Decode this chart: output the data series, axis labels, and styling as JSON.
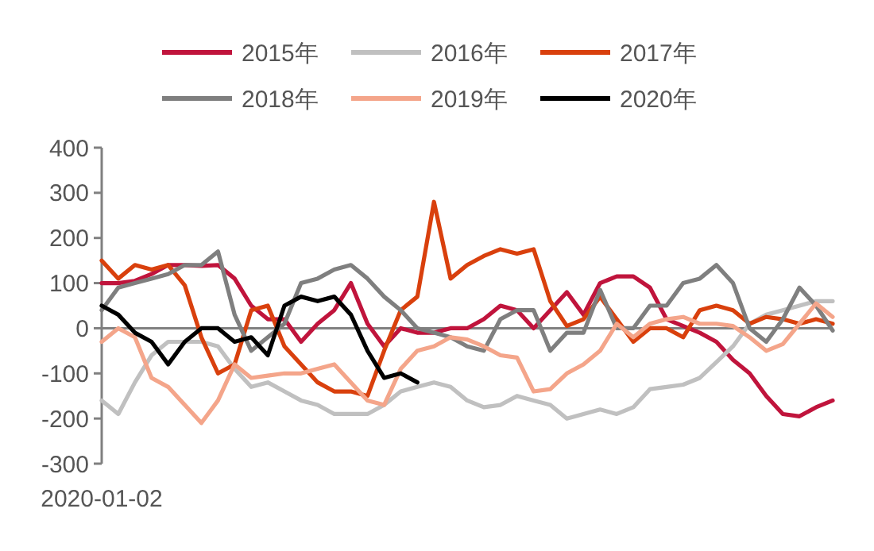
{
  "chart_data": {
    "type": "line",
    "legend": "top",
    "grid": false,
    "line_style": "solid",
    "ref_lines": [
      {
        "axis": "y",
        "value": 0,
        "color": "#808080"
      }
    ],
    "ylim": [
      -300,
      400
    ],
    "yticks": [
      -300,
      -200,
      -100,
      0,
      100,
      200,
      300,
      400
    ],
    "categories": [
      "2020-01-02",
      null,
      null,
      null,
      null,
      null,
      null,
      null,
      null,
      null,
      null,
      null,
      null,
      null,
      null,
      null,
      null,
      null,
      null,
      null,
      null,
      null,
      null,
      null,
      null,
      null,
      null,
      null,
      null,
      null,
      null,
      null,
      null,
      null,
      null,
      null,
      null,
      null,
      null,
      null,
      null,
      null,
      null,
      null,
      null
    ],
    "series": [
      {
        "name": "2015年",
        "color": "#c0143c",
        "values": [
          100,
          100,
          105,
          120,
          140,
          140,
          138,
          140,
          110,
          50,
          20,
          20,
          -30,
          10,
          40,
          100,
          10,
          -40,
          0,
          -10,
          -10,
          0,
          0,
          20,
          50,
          40,
          0,
          40,
          80,
          30,
          100,
          115,
          115,
          90,
          20,
          5,
          -10,
          -30,
          -70,
          -100,
          -150,
          -190,
          -195,
          -175,
          -160
        ]
      },
      {
        "name": "2016年",
        "color": "#c0c0c0",
        "values": [
          -160,
          -190,
          -120,
          -60,
          -30,
          -30,
          -30,
          -40,
          -90,
          -130,
          -120,
          -140,
          -160,
          -170,
          -190,
          -190,
          -190,
          -170,
          -140,
          -130,
          -120,
          -130,
          -160,
          -175,
          -170,
          -150,
          -160,
          -170,
          -200,
          -190,
          -180,
          -190,
          -175,
          -135,
          -130,
          -125,
          -110,
          -75,
          -40,
          10,
          30,
          40,
          50,
          60,
          60
        ]
      },
      {
        "name": "2017年",
        "color": "#d9400d",
        "values": [
          150,
          110,
          140,
          130,
          140,
          95,
          -20,
          -100,
          -80,
          40,
          50,
          -40,
          -80,
          -120,
          -140,
          -140,
          -150,
          -50,
          40,
          70,
          280,
          110,
          140,
          160,
          175,
          165,
          175,
          60,
          5,
          20,
          70,
          20,
          -30,
          0,
          0,
          -20,
          40,
          50,
          40,
          10,
          25,
          20,
          10,
          20,
          10
        ]
      },
      {
        "name": "2018年",
        "color": "#7f7f7f",
        "values": [
          40,
          90,
          100,
          110,
          120,
          140,
          140,
          170,
          30,
          -50,
          -20,
          10,
          100,
          110,
          130,
          140,
          110,
          70,
          40,
          0,
          -10,
          -20,
          -40,
          -50,
          20,
          40,
          40,
          -50,
          -10,
          -10,
          85,
          0,
          0,
          50,
          50,
          100,
          110,
          140,
          100,
          0,
          -30,
          20,
          90,
          50,
          -5
        ]
      },
      {
        "name": "2019年",
        "color": "#f4a58a",
        "values": [
          -30,
          0,
          -20,
          -110,
          -130,
          -170,
          -210,
          -160,
          -80,
          -110,
          -105,
          -100,
          -100,
          -90,
          -80,
          -120,
          -160,
          -170,
          -90,
          -50,
          -40,
          -20,
          -25,
          -40,
          -60,
          -65,
          -140,
          -135,
          -100,
          -80,
          -50,
          10,
          -20,
          10,
          20,
          25,
          10,
          10,
          5,
          -20,
          -50,
          -35,
          10,
          55,
          25
        ]
      },
      {
        "name": "2020年",
        "color": "#000000",
        "values": [
          50,
          30,
          -10,
          -30,
          -80,
          -30,
          0,
          0,
          -30,
          -20,
          -60,
          50,
          70,
          60,
          70,
          30,
          -50,
          -110,
          -100,
          -120,
          null,
          null,
          null,
          null,
          null,
          null,
          null,
          null,
          null,
          null,
          null,
          null,
          null,
          null,
          null,
          null,
          null,
          null,
          null,
          null,
          null,
          null,
          null,
          null,
          null
        ]
      }
    ]
  }
}
